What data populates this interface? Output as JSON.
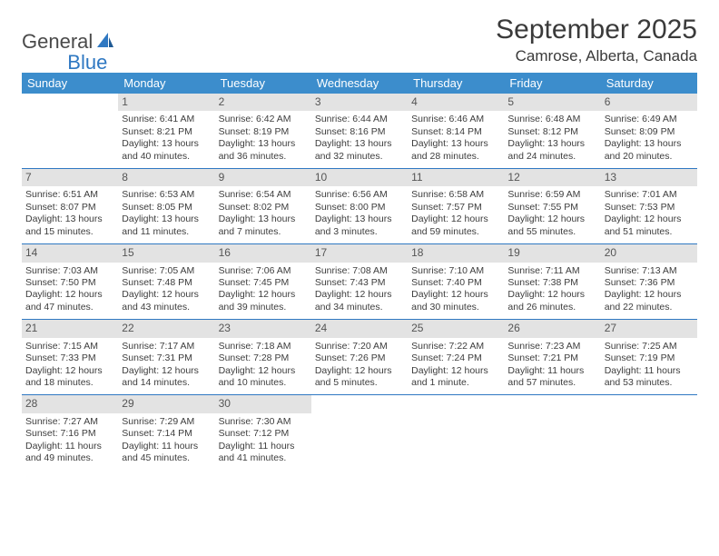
{
  "logo": {
    "word1": "General",
    "word2": "Blue",
    "icon_color": "#2f78c2"
  },
  "title": "September 2025",
  "location": "Camrose, Alberta, Canada",
  "colors": {
    "header_bg": "#3c8dcc",
    "header_fg": "#ffffff",
    "daynum_bg": "#e3e3e3",
    "rule": "#2f78c2",
    "text": "#3d3d3d"
  },
  "weekdays": [
    "Sunday",
    "Monday",
    "Tuesday",
    "Wednesday",
    "Thursday",
    "Friday",
    "Saturday"
  ],
  "weeks": [
    [
      {
        "n": "",
        "sunrise": "",
        "sunset": "",
        "daylight": ""
      },
      {
        "n": "1",
        "sunrise": "Sunrise: 6:41 AM",
        "sunset": "Sunset: 8:21 PM",
        "daylight": "Daylight: 13 hours and 40 minutes."
      },
      {
        "n": "2",
        "sunrise": "Sunrise: 6:42 AM",
        "sunset": "Sunset: 8:19 PM",
        "daylight": "Daylight: 13 hours and 36 minutes."
      },
      {
        "n": "3",
        "sunrise": "Sunrise: 6:44 AM",
        "sunset": "Sunset: 8:16 PM",
        "daylight": "Daylight: 13 hours and 32 minutes."
      },
      {
        "n": "4",
        "sunrise": "Sunrise: 6:46 AM",
        "sunset": "Sunset: 8:14 PM",
        "daylight": "Daylight: 13 hours and 28 minutes."
      },
      {
        "n": "5",
        "sunrise": "Sunrise: 6:48 AM",
        "sunset": "Sunset: 8:12 PM",
        "daylight": "Daylight: 13 hours and 24 minutes."
      },
      {
        "n": "6",
        "sunrise": "Sunrise: 6:49 AM",
        "sunset": "Sunset: 8:09 PM",
        "daylight": "Daylight: 13 hours and 20 minutes."
      }
    ],
    [
      {
        "n": "7",
        "sunrise": "Sunrise: 6:51 AM",
        "sunset": "Sunset: 8:07 PM",
        "daylight": "Daylight: 13 hours and 15 minutes."
      },
      {
        "n": "8",
        "sunrise": "Sunrise: 6:53 AM",
        "sunset": "Sunset: 8:05 PM",
        "daylight": "Daylight: 13 hours and 11 minutes."
      },
      {
        "n": "9",
        "sunrise": "Sunrise: 6:54 AM",
        "sunset": "Sunset: 8:02 PM",
        "daylight": "Daylight: 13 hours and 7 minutes."
      },
      {
        "n": "10",
        "sunrise": "Sunrise: 6:56 AM",
        "sunset": "Sunset: 8:00 PM",
        "daylight": "Daylight: 13 hours and 3 minutes."
      },
      {
        "n": "11",
        "sunrise": "Sunrise: 6:58 AM",
        "sunset": "Sunset: 7:57 PM",
        "daylight": "Daylight: 12 hours and 59 minutes."
      },
      {
        "n": "12",
        "sunrise": "Sunrise: 6:59 AM",
        "sunset": "Sunset: 7:55 PM",
        "daylight": "Daylight: 12 hours and 55 minutes."
      },
      {
        "n": "13",
        "sunrise": "Sunrise: 7:01 AM",
        "sunset": "Sunset: 7:53 PM",
        "daylight": "Daylight: 12 hours and 51 minutes."
      }
    ],
    [
      {
        "n": "14",
        "sunrise": "Sunrise: 7:03 AM",
        "sunset": "Sunset: 7:50 PM",
        "daylight": "Daylight: 12 hours and 47 minutes."
      },
      {
        "n": "15",
        "sunrise": "Sunrise: 7:05 AM",
        "sunset": "Sunset: 7:48 PM",
        "daylight": "Daylight: 12 hours and 43 minutes."
      },
      {
        "n": "16",
        "sunrise": "Sunrise: 7:06 AM",
        "sunset": "Sunset: 7:45 PM",
        "daylight": "Daylight: 12 hours and 39 minutes."
      },
      {
        "n": "17",
        "sunrise": "Sunrise: 7:08 AM",
        "sunset": "Sunset: 7:43 PM",
        "daylight": "Daylight: 12 hours and 34 minutes."
      },
      {
        "n": "18",
        "sunrise": "Sunrise: 7:10 AM",
        "sunset": "Sunset: 7:40 PM",
        "daylight": "Daylight: 12 hours and 30 minutes."
      },
      {
        "n": "19",
        "sunrise": "Sunrise: 7:11 AM",
        "sunset": "Sunset: 7:38 PM",
        "daylight": "Daylight: 12 hours and 26 minutes."
      },
      {
        "n": "20",
        "sunrise": "Sunrise: 7:13 AM",
        "sunset": "Sunset: 7:36 PM",
        "daylight": "Daylight: 12 hours and 22 minutes."
      }
    ],
    [
      {
        "n": "21",
        "sunrise": "Sunrise: 7:15 AM",
        "sunset": "Sunset: 7:33 PM",
        "daylight": "Daylight: 12 hours and 18 minutes."
      },
      {
        "n": "22",
        "sunrise": "Sunrise: 7:17 AM",
        "sunset": "Sunset: 7:31 PM",
        "daylight": "Daylight: 12 hours and 14 minutes."
      },
      {
        "n": "23",
        "sunrise": "Sunrise: 7:18 AM",
        "sunset": "Sunset: 7:28 PM",
        "daylight": "Daylight: 12 hours and 10 minutes."
      },
      {
        "n": "24",
        "sunrise": "Sunrise: 7:20 AM",
        "sunset": "Sunset: 7:26 PM",
        "daylight": "Daylight: 12 hours and 5 minutes."
      },
      {
        "n": "25",
        "sunrise": "Sunrise: 7:22 AM",
        "sunset": "Sunset: 7:24 PM",
        "daylight": "Daylight: 12 hours and 1 minute."
      },
      {
        "n": "26",
        "sunrise": "Sunrise: 7:23 AM",
        "sunset": "Sunset: 7:21 PM",
        "daylight": "Daylight: 11 hours and 57 minutes."
      },
      {
        "n": "27",
        "sunrise": "Sunrise: 7:25 AM",
        "sunset": "Sunset: 7:19 PM",
        "daylight": "Daylight: 11 hours and 53 minutes."
      }
    ],
    [
      {
        "n": "28",
        "sunrise": "Sunrise: 7:27 AM",
        "sunset": "Sunset: 7:16 PM",
        "daylight": "Daylight: 11 hours and 49 minutes."
      },
      {
        "n": "29",
        "sunrise": "Sunrise: 7:29 AM",
        "sunset": "Sunset: 7:14 PM",
        "daylight": "Daylight: 11 hours and 45 minutes."
      },
      {
        "n": "30",
        "sunrise": "Sunrise: 7:30 AM",
        "sunset": "Sunset: 7:12 PM",
        "daylight": "Daylight: 11 hours and 41 minutes."
      },
      {
        "n": "",
        "sunrise": "",
        "sunset": "",
        "daylight": ""
      },
      {
        "n": "",
        "sunrise": "",
        "sunset": "",
        "daylight": ""
      },
      {
        "n": "",
        "sunrise": "",
        "sunset": "",
        "daylight": ""
      },
      {
        "n": "",
        "sunrise": "",
        "sunset": "",
        "daylight": ""
      }
    ]
  ]
}
